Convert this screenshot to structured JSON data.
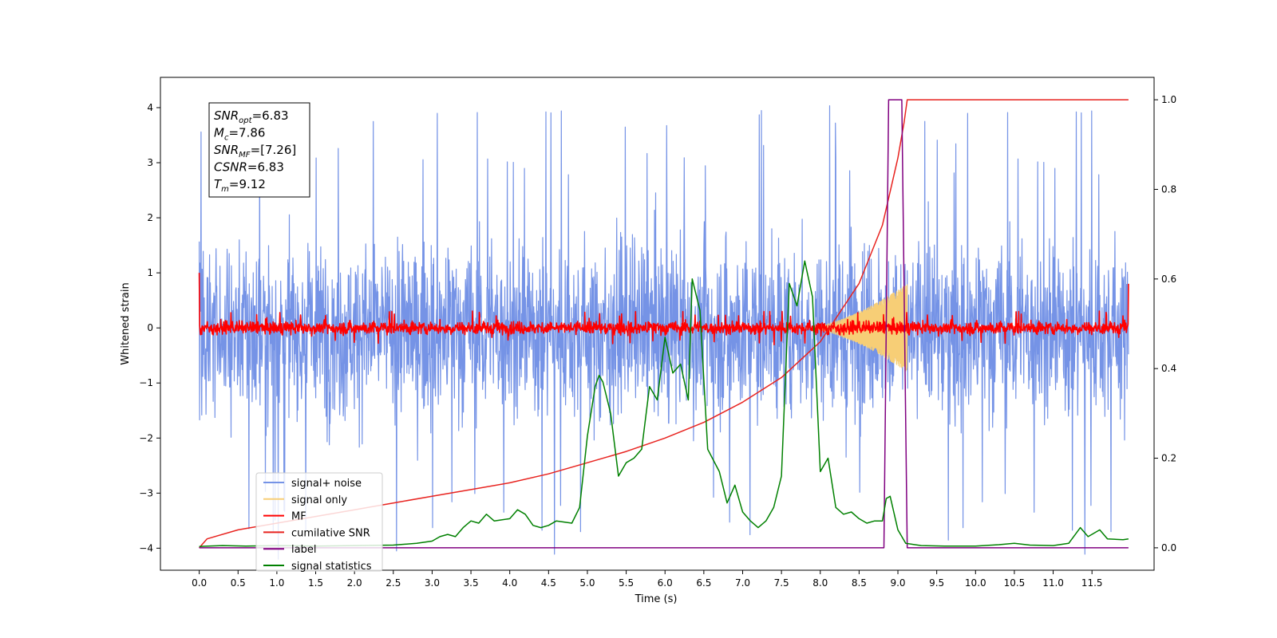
{
  "chart_data": {
    "type": "line",
    "xlabel": "Time (s)",
    "ylabel": "Whitened strain",
    "xlim": [
      -0.5,
      12.3
    ],
    "ylim": [
      -4.4,
      4.55
    ],
    "ylim_right": [
      -0.05,
      1.05
    ],
    "x_ticks": [
      "0.0",
      "0.5",
      "1.0",
      "1.5",
      "2.0",
      "2.5",
      "3.0",
      "3.5",
      "4.0",
      "4.5",
      "5.0",
      "5.5",
      "6.0",
      "6.5",
      "7.0",
      "7.5",
      "8.0",
      "8.5",
      "9.0",
      "9.5",
      "10.0",
      "10.5",
      "11.0",
      "11.5"
    ],
    "y_ticks_left": [
      "4",
      "3",
      "2",
      "1",
      "0",
      "−1",
      "−2",
      "−3",
      "−4"
    ],
    "y_ticks_right": [
      "1.0",
      "0.8",
      "0.6",
      "0.4",
      "0.2",
      "0.0"
    ],
    "grid": false,
    "legend_position": "lower-left",
    "info_box": [
      {
        "sym": "SNR",
        "sub": "opt",
        "text": "=6.83"
      },
      {
        "sym": "M",
        "sub": "c",
        "text": "=7.86"
      },
      {
        "sym": "SNR",
        "sub": "MF",
        "text": "=[7.26]"
      },
      {
        "sym": "CSNR",
        "sub": "",
        "text": "=6.83"
      },
      {
        "sym": "T",
        "sub": "m",
        "text": "=9.12"
      }
    ],
    "series": [
      {
        "name": "signal+ noise",
        "axis": "left",
        "color": "#7593e6",
        "kind": "noise",
        "x_range": [
          0,
          11.97
        ],
        "amplitude_typical": 2.0,
        "amplitude_peak": 4.2,
        "baseline": -0.05
      },
      {
        "name": "signal only",
        "axis": "left",
        "color": "#f7ce76",
        "kind": "chirp",
        "x_range": [
          7.8,
          9.12
        ],
        "envelope_max": 0.8
      },
      {
        "name": "MF",
        "axis": "left",
        "color": "#ff0000",
        "kind": "noise",
        "x_range": [
          0,
          11.97
        ],
        "amplitude_typical": 0.15,
        "amplitude_peak": 0.35,
        "start_value": 1.0,
        "end_value": 0.8
      },
      {
        "name": "cumilative SNR",
        "axis": "right",
        "color": "#e8231f",
        "points": [
          [
            0.0,
            0.0
          ],
          [
            0.1,
            0.02
          ],
          [
            0.5,
            0.04
          ],
          [
            1.0,
            0.055
          ],
          [
            1.5,
            0.07
          ],
          [
            2.0,
            0.085
          ],
          [
            2.5,
            0.1
          ],
          [
            3.0,
            0.115
          ],
          [
            3.5,
            0.13
          ],
          [
            4.0,
            0.145
          ],
          [
            4.5,
            0.165
          ],
          [
            5.0,
            0.19
          ],
          [
            5.5,
            0.215
          ],
          [
            6.0,
            0.245
          ],
          [
            6.5,
            0.28
          ],
          [
            7.0,
            0.325
          ],
          [
            7.5,
            0.38
          ],
          [
            8.0,
            0.46
          ],
          [
            8.5,
            0.59
          ],
          [
            8.8,
            0.72
          ],
          [
            9.0,
            0.87
          ],
          [
            9.08,
            0.95
          ],
          [
            9.12,
            1.0
          ],
          [
            11.97,
            1.0
          ]
        ]
      },
      {
        "name": "label",
        "axis": "right",
        "color": "#800080",
        "points": [
          [
            0.0,
            0.0
          ],
          [
            8.82,
            0.0
          ],
          [
            8.88,
            1.0
          ],
          [
            9.05,
            1.0
          ],
          [
            9.12,
            0.0
          ],
          [
            11.97,
            0.0
          ]
        ]
      },
      {
        "name": "signal statistics",
        "axis": "right",
        "color": "#008000",
        "points": [
          [
            0.0,
            0.003
          ],
          [
            0.3,
            0.005
          ],
          [
            0.6,
            0.004
          ],
          [
            1.0,
            0.005
          ],
          [
            1.5,
            0.004
          ],
          [
            2.0,
            0.005
          ],
          [
            2.5,
            0.006
          ],
          [
            2.8,
            0.01
          ],
          [
            3.0,
            0.015
          ],
          [
            3.1,
            0.025
          ],
          [
            3.2,
            0.03
          ],
          [
            3.3,
            0.025
          ],
          [
            3.4,
            0.045
          ],
          [
            3.5,
            0.06
          ],
          [
            3.6,
            0.055
          ],
          [
            3.7,
            0.075
          ],
          [
            3.8,
            0.06
          ],
          [
            4.0,
            0.065
          ],
          [
            4.1,
            0.085
          ],
          [
            4.2,
            0.075
          ],
          [
            4.3,
            0.05
          ],
          [
            4.4,
            0.045
          ],
          [
            4.5,
            0.05
          ],
          [
            4.6,
            0.06
          ],
          [
            4.8,
            0.055
          ],
          [
            4.9,
            0.09
          ],
          [
            5.0,
            0.25
          ],
          [
            5.1,
            0.36
          ],
          [
            5.15,
            0.385
          ],
          [
            5.2,
            0.37
          ],
          [
            5.3,
            0.3
          ],
          [
            5.4,
            0.16
          ],
          [
            5.5,
            0.19
          ],
          [
            5.6,
            0.2
          ],
          [
            5.7,
            0.22
          ],
          [
            5.8,
            0.36
          ],
          [
            5.9,
            0.33
          ],
          [
            6.0,
            0.47
          ],
          [
            6.1,
            0.39
          ],
          [
            6.2,
            0.41
          ],
          [
            6.3,
            0.33
          ],
          [
            6.35,
            0.6
          ],
          [
            6.45,
            0.53
          ],
          [
            6.55,
            0.22
          ],
          [
            6.7,
            0.17
          ],
          [
            6.8,
            0.1
          ],
          [
            6.9,
            0.14
          ],
          [
            7.0,
            0.08
          ],
          [
            7.1,
            0.06
          ],
          [
            7.2,
            0.045
          ],
          [
            7.3,
            0.06
          ],
          [
            7.4,
            0.09
          ],
          [
            7.5,
            0.16
          ],
          [
            7.6,
            0.59
          ],
          [
            7.7,
            0.54
          ],
          [
            7.8,
            0.64
          ],
          [
            7.9,
            0.56
          ],
          [
            8.0,
            0.17
          ],
          [
            8.1,
            0.2
          ],
          [
            8.2,
            0.09
          ],
          [
            8.3,
            0.075
          ],
          [
            8.4,
            0.08
          ],
          [
            8.5,
            0.065
          ],
          [
            8.6,
            0.055
          ],
          [
            8.7,
            0.06
          ],
          [
            8.8,
            0.06
          ],
          [
            8.85,
            0.11
          ],
          [
            8.9,
            0.115
          ],
          [
            9.0,
            0.04
          ],
          [
            9.1,
            0.01
          ],
          [
            9.3,
            0.005
          ],
          [
            9.6,
            0.004
          ],
          [
            10.0,
            0.004
          ],
          [
            10.3,
            0.007
          ],
          [
            10.5,
            0.01
          ],
          [
            10.7,
            0.006
          ],
          [
            11.0,
            0.005
          ],
          [
            11.2,
            0.01
          ],
          [
            11.35,
            0.045
          ],
          [
            11.45,
            0.025
          ],
          [
            11.6,
            0.04
          ],
          [
            11.7,
            0.02
          ],
          [
            11.9,
            0.018
          ],
          [
            11.97,
            0.02
          ]
        ]
      }
    ]
  }
}
